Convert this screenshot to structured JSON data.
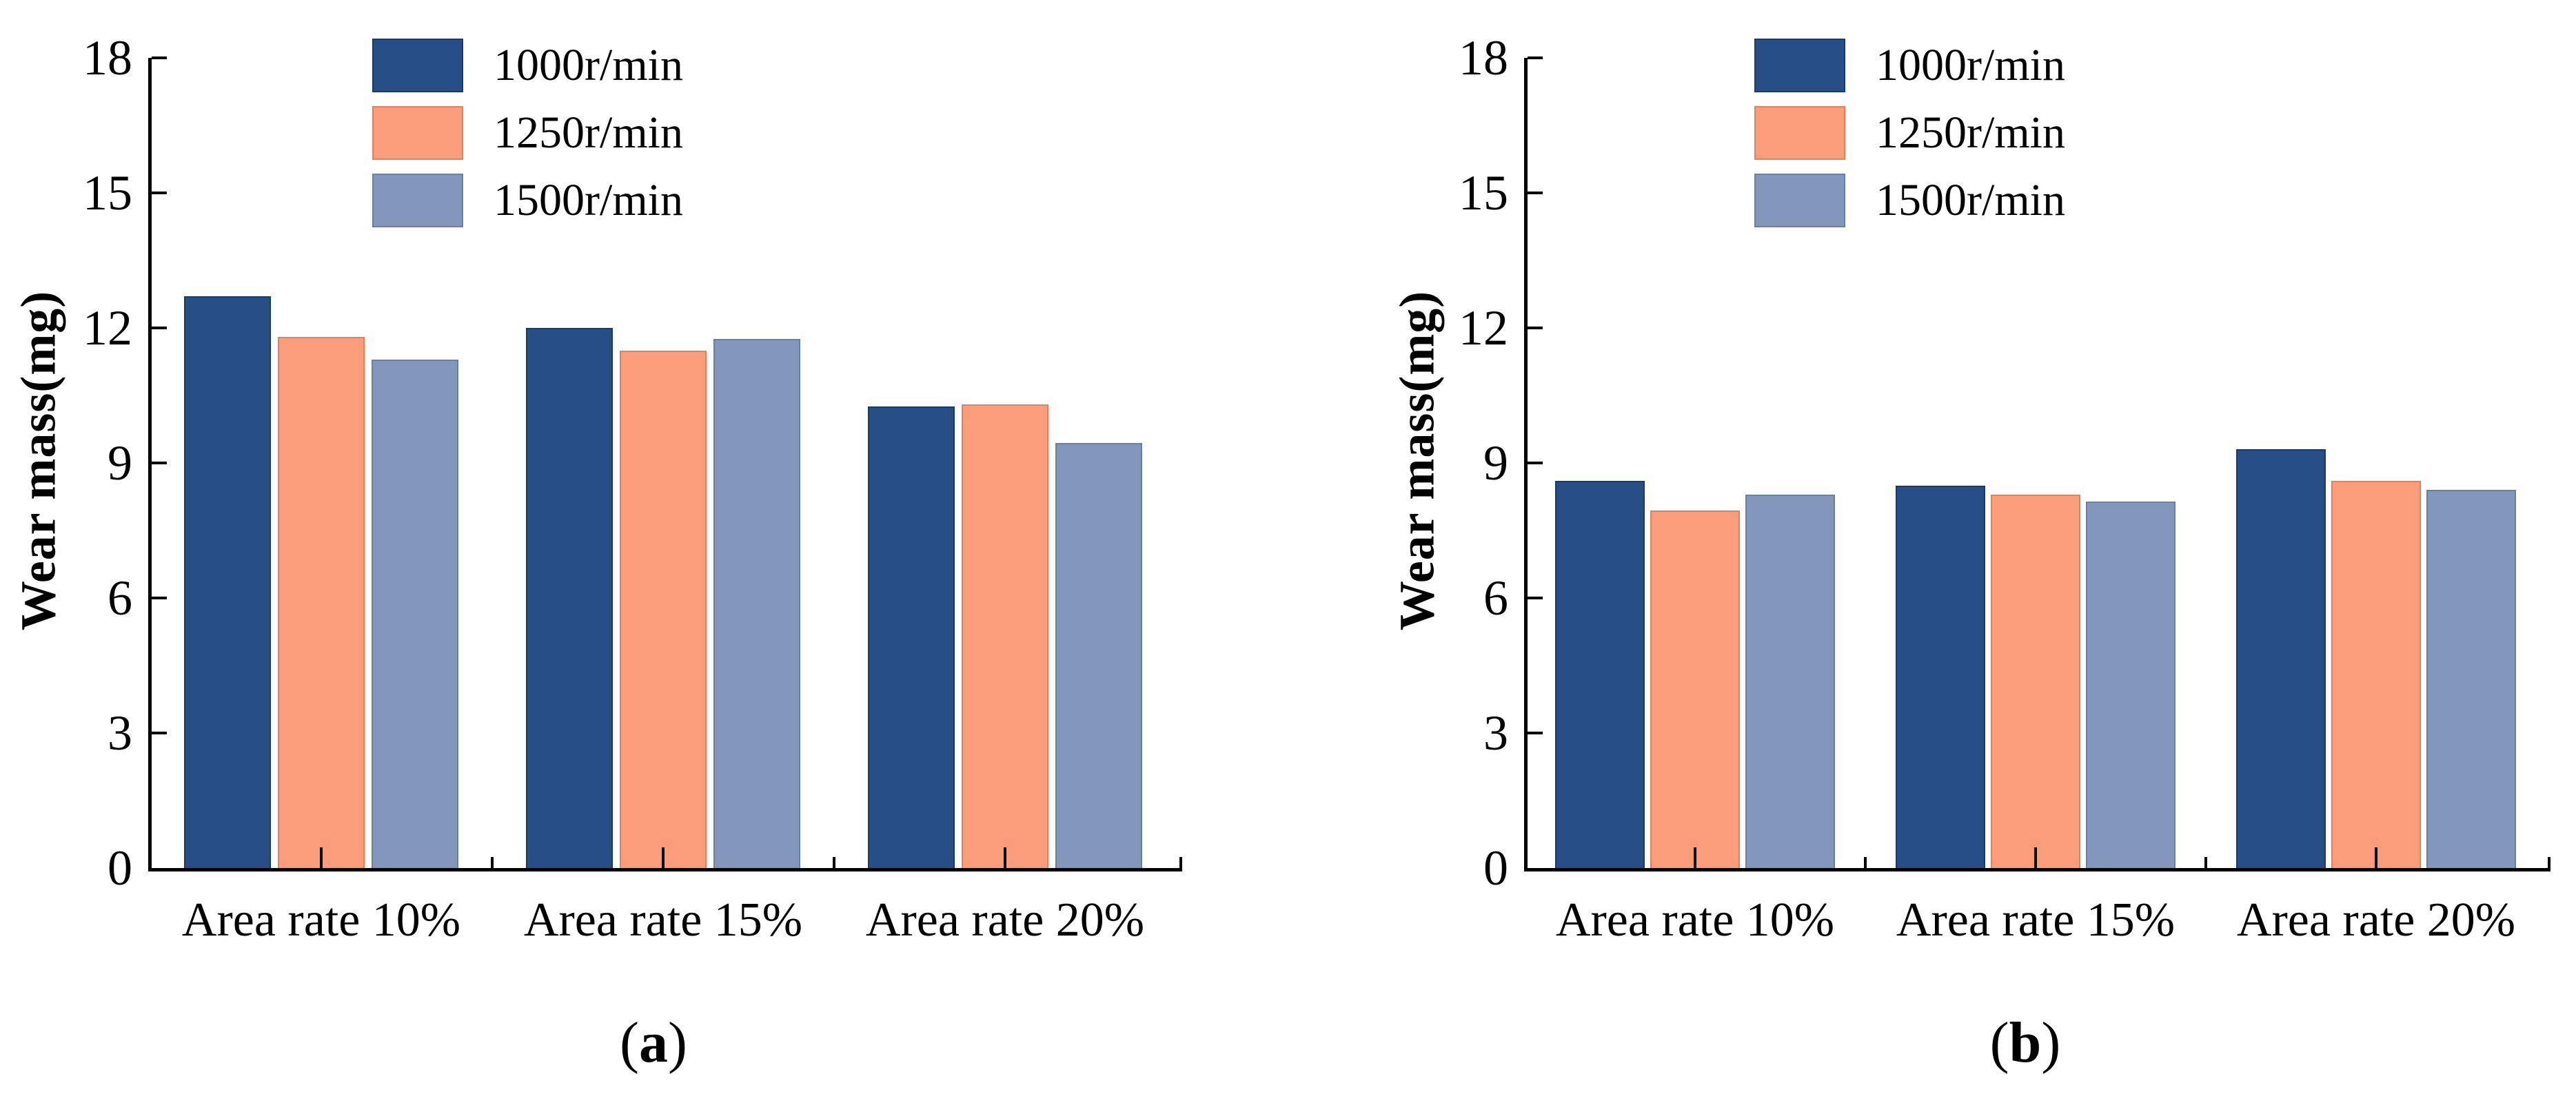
{
  "page": {
    "background": "#ffffff",
    "axis_color": "#000000",
    "text_color": "#000000"
  },
  "legend": {
    "items": [
      {
        "label": "1000r/min",
        "color": "#274e87",
        "border": "#1d3a66"
      },
      {
        "label": "1250r/min",
        "color": "#fb9d7a",
        "border": "#e0805c"
      },
      {
        "label": "1500r/min",
        "color": "#8297bb",
        "border": "#69809f"
      }
    ],
    "position": "top-left-inside"
  },
  "chart_data": [
    {
      "type": "bar",
      "caption": {
        "open": "(",
        "letter": "a",
        "close": ")"
      },
      "title": "",
      "xlabel": "",
      "ylabel": "Wear mass(mg)",
      "ylim": [
        0,
        18
      ],
      "yticks": [
        0,
        3,
        6,
        9,
        12,
        15,
        18
      ],
      "grid": false,
      "legend_position": "top-left-inside",
      "categories": [
        "Area rate 10%",
        "Area rate 15%",
        "Area rate 20%"
      ],
      "series": [
        {
          "name": "1000r/min",
          "color": "#274e87",
          "border": "#1d3a66",
          "values": [
            12.7,
            12.0,
            10.25
          ]
        },
        {
          "name": "1250r/min",
          "color": "#fb9d7a",
          "border": "#e0805c",
          "values": [
            11.8,
            11.5,
            10.3
          ]
        },
        {
          "name": "1500r/min",
          "color": "#8297bb",
          "border": "#69809f",
          "values": [
            11.3,
            11.75,
            9.45
          ]
        }
      ]
    },
    {
      "type": "bar",
      "caption": {
        "open": "(",
        "letter": "b",
        "close": ")"
      },
      "title": "",
      "xlabel": "",
      "ylabel": "Wear mass(mg)",
      "ylim": [
        0,
        18
      ],
      "yticks": [
        0,
        3,
        6,
        9,
        12,
        15,
        18
      ],
      "grid": false,
      "legend_position": "top-left-inside",
      "categories": [
        "Area rate 10%",
        "Area rate 15%",
        "Area rate 20%"
      ],
      "series": [
        {
          "name": "1000r/min",
          "color": "#274e87",
          "border": "#1d3a66",
          "values": [
            8.6,
            8.5,
            9.3
          ]
        },
        {
          "name": "1250r/min",
          "color": "#fb9d7a",
          "border": "#e0805c",
          "values": [
            7.95,
            8.3,
            8.6
          ]
        },
        {
          "name": "1500r/min",
          "color": "#8297bb",
          "border": "#69809f",
          "values": [
            8.3,
            8.15,
            8.4
          ]
        }
      ]
    }
  ]
}
